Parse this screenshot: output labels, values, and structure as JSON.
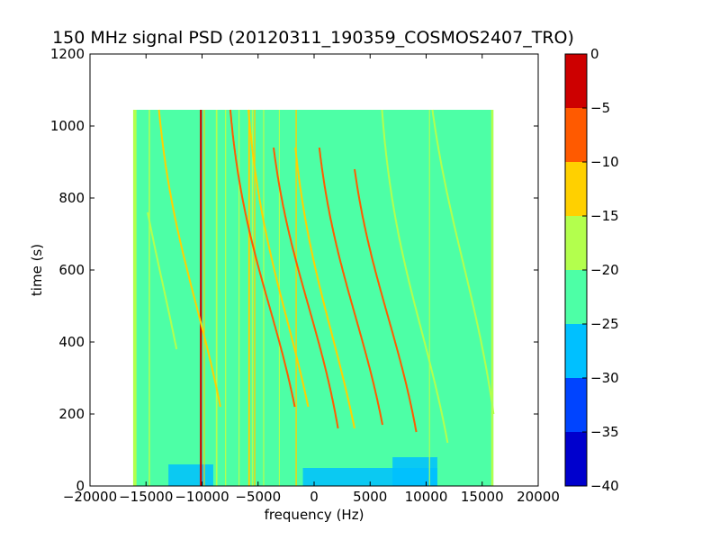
{
  "chart_data": {
    "type": "heatmap",
    "title": "150 MHz signal PSD (20120311_190359_COSMOS2407_TRO)",
    "xlabel": "frequency (Hz)",
    "ylabel": "time (s)",
    "xlim": [
      -20000,
      20000
    ],
    "ylim": [
      0,
      1200
    ],
    "xticks": [
      -20000,
      -15000,
      -10000,
      -5000,
      0,
      5000,
      10000,
      15000,
      20000
    ],
    "yticks": [
      0,
      200,
      400,
      600,
      800,
      1000,
      1200
    ],
    "data_extent": {
      "x": [
        -16000,
        16000
      ],
      "y": [
        0,
        1045
      ]
    },
    "background_level_db": -22.5,
    "colorbar": {
      "levels": [
        -40,
        -35,
        -30,
        -25,
        -20,
        -15,
        -10,
        -5,
        0
      ],
      "ticks": [
        0,
        -5,
        -10,
        -15,
        -20,
        -25,
        -30,
        -35,
        -40
      ],
      "colors": [
        "#0000cd",
        "#0044ff",
        "#00c0ff",
        "#4dffa6",
        "#b3ff4d",
        "#ffd000",
        "#ff5a00",
        "#cd0000"
      ]
    },
    "vertical_lines": [
      {
        "x": -16000,
        "width": 300,
        "level_db": -17
      },
      {
        "x": -14700,
        "width": 120,
        "level_db": -17
      },
      {
        "x": -10100,
        "width": 180,
        "level_db": -2
      },
      {
        "x": -9800,
        "width": 90,
        "level_db": -12
      },
      {
        "x": -8700,
        "width": 140,
        "level_db": -17
      },
      {
        "x": -7900,
        "width": 110,
        "level_db": -17
      },
      {
        "x": -6700,
        "width": 100,
        "level_db": -17
      },
      {
        "x": -5800,
        "width": 150,
        "level_db": -12
      },
      {
        "x": -5500,
        "width": 120,
        "level_db": -17
      },
      {
        "x": -5300,
        "width": 110,
        "level_db": -12
      },
      {
        "x": -4500,
        "width": 100,
        "level_db": -17
      },
      {
        "x": -3100,
        "width": 90,
        "level_db": -17
      },
      {
        "x": -1600,
        "width": 110,
        "level_db": -12
      },
      {
        "x": 10300,
        "width": 90,
        "level_db": -17
      },
      {
        "x": 15900,
        "width": 200,
        "level_db": -17
      }
    ],
    "doppler_tracks": [
      {
        "center_freq_hz": -10500,
        "center_time_s": 500,
        "slope": 0.06,
        "level_db": -12,
        "t_min": 220,
        "t_max": 1045
      },
      {
        "center_freq_hz": -4000,
        "center_time_s": 500,
        "slope": 0.065,
        "level_db": -7,
        "t_min": 220,
        "t_max": 1045
      },
      {
        "center_freq_hz": -2400,
        "center_time_s": 460,
        "slope": 0.06,
        "level_db": -12,
        "t_min": 220,
        "t_max": 1045
      },
      {
        "center_freq_hz": -500,
        "center_time_s": 500,
        "slope": 0.065,
        "level_db": -7,
        "t_min": 160,
        "t_max": 940
      },
      {
        "center_freq_hz": 1600,
        "center_time_s": 420,
        "slope": 0.06,
        "level_db": -12,
        "t_min": 160,
        "t_max": 940
      },
      {
        "center_freq_hz": 3700,
        "center_time_s": 470,
        "slope": 0.065,
        "level_db": -7,
        "t_min": 170,
        "t_max": 940
      },
      {
        "center_freq_hz": 6600,
        "center_time_s": 470,
        "slope": 0.065,
        "level_db": -7,
        "t_min": 150,
        "t_max": 880
      },
      {
        "center_freq_hz": 9600,
        "center_time_s": 430,
        "slope": 0.06,
        "level_db": -17,
        "t_min": 120,
        "t_max": 1045
      },
      {
        "center_freq_hz": 13300,
        "center_time_s": 620,
        "slope": 0.055,
        "level_db": -17,
        "t_min": 200,
        "t_max": 1045
      },
      {
        "center_freq_hz": -13500,
        "center_time_s": 560,
        "slope": 0.05,
        "level_db": -17,
        "t_min": 380,
        "t_max": 760
      }
    ],
    "low_noise_patches": [
      {
        "x_range": [
          -13000,
          -9000
        ],
        "y_range": [
          0,
          60
        ]
      },
      {
        "x_range": [
          -1000,
          11000
        ],
        "y_range": [
          0,
          50
        ]
      },
      {
        "x_range": [
          7000,
          11000
        ],
        "y_range": [
          0,
          80
        ]
      }
    ]
  }
}
